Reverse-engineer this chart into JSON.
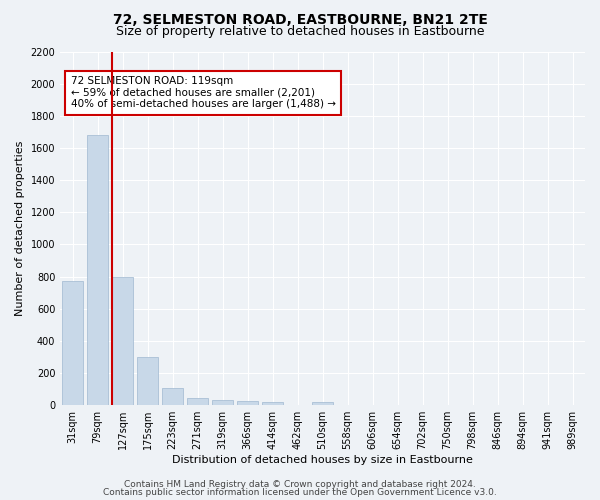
{
  "title": "72, SELMESTON ROAD, EASTBOURNE, BN21 2TE",
  "subtitle": "Size of property relative to detached houses in Eastbourne",
  "xlabel": "Distribution of detached houses by size in Eastbourne",
  "ylabel": "Number of detached properties",
  "categories": [
    "31sqm",
    "79sqm",
    "127sqm",
    "175sqm",
    "223sqm",
    "271sqm",
    "319sqm",
    "366sqm",
    "414sqm",
    "462sqm",
    "510sqm",
    "558sqm",
    "606sqm",
    "654sqm",
    "702sqm",
    "750sqm",
    "798sqm",
    "846sqm",
    "894sqm",
    "941sqm",
    "989sqm"
  ],
  "values": [
    770,
    1680,
    800,
    300,
    110,
    45,
    32,
    25,
    22,
    0,
    20,
    0,
    0,
    0,
    0,
    0,
    0,
    0,
    0,
    0,
    0
  ],
  "bar_color": "#c8d8e8",
  "bar_edge_color": "#a0b8d0",
  "vline_color": "#cc0000",
  "annotation_text": "72 SELMESTON ROAD: 119sqm\n← 59% of detached houses are smaller (2,201)\n40% of semi-detached houses are larger (1,488) →",
  "annotation_box_color": "#ffffff",
  "annotation_box_edge_color": "#cc0000",
  "ylim": [
    0,
    2200
  ],
  "yticks": [
    0,
    200,
    400,
    600,
    800,
    1000,
    1200,
    1400,
    1600,
    1800,
    2000,
    2200
  ],
  "footer_line1": "Contains HM Land Registry data © Crown copyright and database right 2024.",
  "footer_line2": "Contains public sector information licensed under the Open Government Licence v3.0.",
  "bg_color": "#eef2f6",
  "plot_bg_color": "#eef2f6",
  "title_fontsize": 10,
  "subtitle_fontsize": 9,
  "axis_label_fontsize": 8,
  "tick_fontsize": 7,
  "annotation_fontsize": 7.5,
  "footer_fontsize": 6.5
}
